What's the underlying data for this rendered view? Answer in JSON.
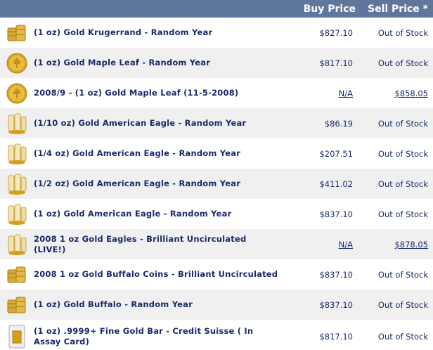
{
  "header": {
    "buy_price_label": "Buy Price",
    "sell_price_label": "Sell Price *"
  },
  "colors": {
    "header_bg": "#60779d",
    "row_alt_bg": "#f0f0f0",
    "text": "#1a2a6c",
    "gold": "#d4a017"
  },
  "products": [
    {
      "name": "(1 oz) Gold Krugerrand - Random Year",
      "buy": "$827.10",
      "sell": "Out of Stock",
      "icon": "coin-stack-icon",
      "buy_link": false,
      "sell_link": false
    },
    {
      "name": "(1 oz) Gold Maple Leaf - Random Year",
      "buy": "$817.10",
      "sell": "Out of Stock",
      "icon": "maple-leaf-coin-icon",
      "buy_link": false,
      "sell_link": false
    },
    {
      "name": "2008/9 - (1 oz) Gold Maple Leaf (11-5-2008)",
      "buy": "N/A",
      "sell": "$858.05",
      "icon": "maple-leaf-coin-icon",
      "buy_link": true,
      "sell_link": true
    },
    {
      "name": "(1/10 oz) Gold American Eagle - Random Year",
      "buy": "$86.19",
      "sell": "Out of Stock",
      "icon": "coin-tube-icon",
      "buy_link": false,
      "sell_link": false
    },
    {
      "name": "(1/4 oz) Gold American Eagle - Random Year",
      "buy": "$207.51",
      "sell": "Out of Stock",
      "icon": "coin-tube-icon",
      "buy_link": false,
      "sell_link": false
    },
    {
      "name": "(1/2 oz) Gold American Eagle - Random Year",
      "buy": "$411.02",
      "sell": "Out of Stock",
      "icon": "coin-tube-icon",
      "buy_link": false,
      "sell_link": false
    },
    {
      "name": "(1 oz) Gold American Eagle - Random Year",
      "buy": "$837.10",
      "sell": "Out of Stock",
      "icon": "coin-tube-icon",
      "buy_link": false,
      "sell_link": false
    },
    {
      "name": "2008 1 oz Gold Eagles - Brilliant Uncirculated (LIVE!)",
      "buy": "N/A",
      "sell": "$878.05",
      "icon": "coin-tube-icon",
      "buy_link": true,
      "sell_link": true
    },
    {
      "name": "2008 1 oz Gold Buffalo Coins - Brilliant Uncirculated",
      "buy": "$837.10",
      "sell": "Out of Stock",
      "icon": "coin-stack-icon",
      "buy_link": false,
      "sell_link": false
    },
    {
      "name": "(1 oz) Gold Buffalo - Random Year",
      "buy": "$837.10",
      "sell": "Out of Stock",
      "icon": "coin-stack-icon",
      "buy_link": false,
      "sell_link": false
    },
    {
      "name": "(1 oz) .9999+ Fine Gold Bar - Credit Suisse ( In Assay Card)",
      "buy": "$817.10",
      "sell": "Out of Stock",
      "icon": "gold-bar-card-icon",
      "buy_link": false,
      "sell_link": false
    }
  ]
}
